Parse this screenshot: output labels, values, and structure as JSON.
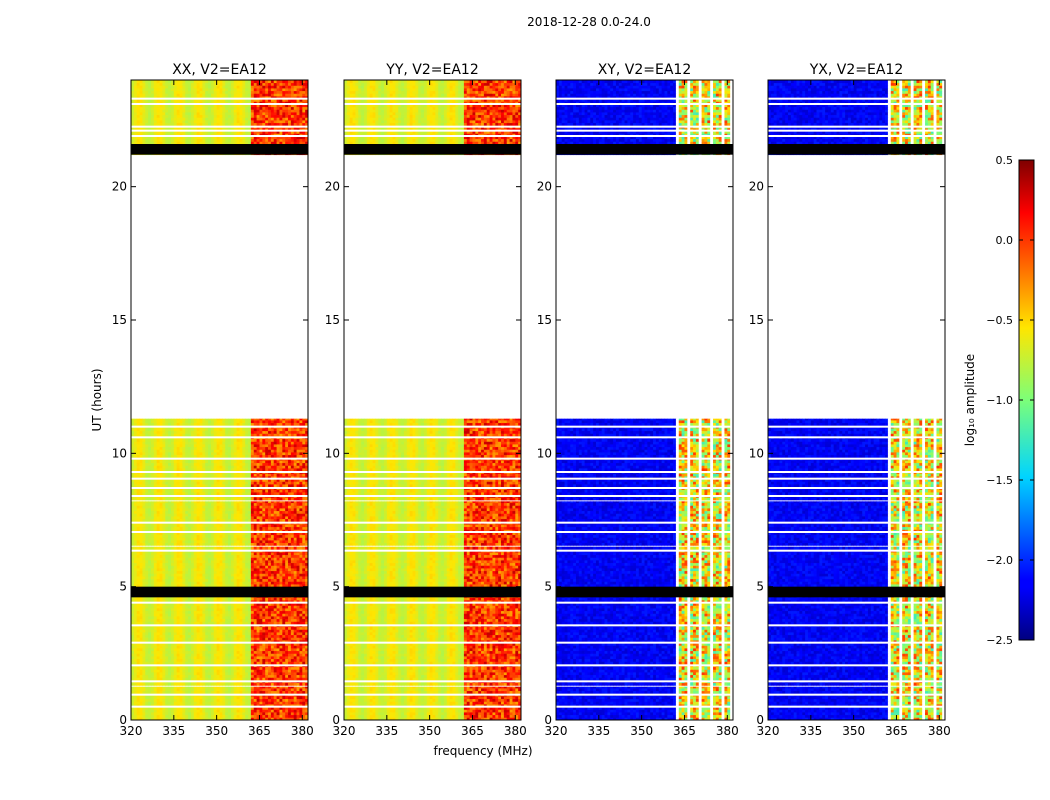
{
  "chart_data": {
    "type": "heatmap",
    "title": "2018-12-28 0.0-24.0",
    "xlabel": "frequency (MHz)",
    "ylabel": "UT (hours)",
    "xlim": [
      320,
      382
    ],
    "ylim": [
      0,
      24
    ],
    "xticks": [
      320,
      335,
      350,
      365,
      380
    ],
    "yticks": [
      0,
      5,
      10,
      15,
      20
    ],
    "panels": [
      {
        "name": "xx",
        "title": "XX, V2=EA12",
        "kind": "parallel"
      },
      {
        "name": "yy",
        "title": "YY, V2=EA12",
        "kind": "parallel"
      },
      {
        "name": "xy",
        "title": "XY, V2=EA12",
        "kind": "cross"
      },
      {
        "name": "yx",
        "title": "YX, V2=EA12",
        "kind": "cross"
      }
    ],
    "data_segments_ut": [
      [
        0.0,
        1.25
      ],
      [
        1.3,
        6.5
      ],
      [
        6.55,
        8.2
      ],
      [
        8.25,
        11.3
      ],
      [
        21.2,
        24.0
      ]
    ],
    "flagged_ut": [
      [
        4.6,
        5.0
      ],
      [
        21.2,
        21.6
      ]
    ],
    "gap_lines_ut": [
      0.5,
      0.95,
      1.45,
      2.05,
      2.9,
      3.55,
      4.4,
      6.35,
      7.05,
      7.4,
      8.4,
      8.7,
      9.05,
      9.3,
      9.8,
      10.6,
      11.0,
      21.9,
      22.1,
      22.25,
      23.1,
      23.3
    ],
    "bright_band_mhz": [
      362,
      382
    ],
    "cross_channel_gaps_mhz": [
      [
        362,
        362.8
      ],
      [
        366,
        367
      ],
      [
        370,
        371
      ],
      [
        374.4,
        375.3
      ],
      [
        377.8,
        378.8
      ],
      [
        381.2,
        382
      ]
    ],
    "colorbar": {
      "label": "log₁₀ amplitude",
      "range": [
        -2.5,
        0.5
      ],
      "ticks": [
        {
          "value": 0.5,
          "label": "0.5"
        },
        {
          "value": 0.0,
          "label": "0.0"
        },
        {
          "value": -0.5,
          "label": "−0.5"
        },
        {
          "value": -1.0,
          "label": "−1.0"
        },
        {
          "value": -1.5,
          "label": "−1.5"
        },
        {
          "value": -2.0,
          "label": "−2.0"
        },
        {
          "value": -2.5,
          "label": "−2.5"
        }
      ],
      "colormap": "jet"
    }
  }
}
